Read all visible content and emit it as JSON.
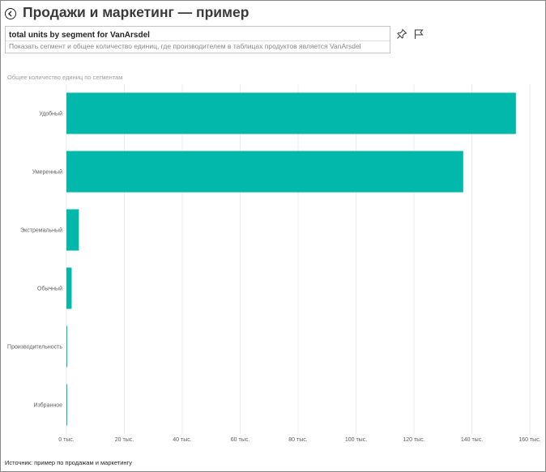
{
  "header": {
    "title": "Продажи и маркетинг — пример"
  },
  "qa": {
    "question": "total units by segment for VanArsdel",
    "restatement": "Показать сегмент и общее количество единиц, где производителем в таблицах продуктов является VanArsdel"
  },
  "toolbar": {
    "pin_icon": "pin-icon",
    "flag_icon": "flag-icon"
  },
  "chart_data": {
    "type": "bar",
    "orientation": "horizontal",
    "title": "Общее количество единиц по сегментам",
    "categories": [
      "Удобный",
      "Умеренный",
      "Экстремальный",
      "Обычный",
      "Производительность",
      "Избранное"
    ],
    "values": [
      155200,
      137000,
      4300,
      1800,
      300,
      200
    ],
    "xlim": [
      0,
      160000
    ],
    "xticks": [
      0,
      20000,
      40000,
      60000,
      80000,
      100000,
      120000,
      140000,
      160000
    ],
    "xtick_labels": [
      "0 тыс.",
      "20 тыс.",
      "40 тыс.",
      "60 тыс.",
      "80 тыс.",
      "100 тыс.",
      "120 тыс.",
      "140 тыс.",
      "160 тыс."
    ],
    "xlabel": "",
    "ylabel": "",
    "bar_color": "#01b8aa",
    "grid_color": "#ececec",
    "grid": true
  },
  "footer": {
    "source": "Источник: пример по продажам и маркетингу"
  }
}
